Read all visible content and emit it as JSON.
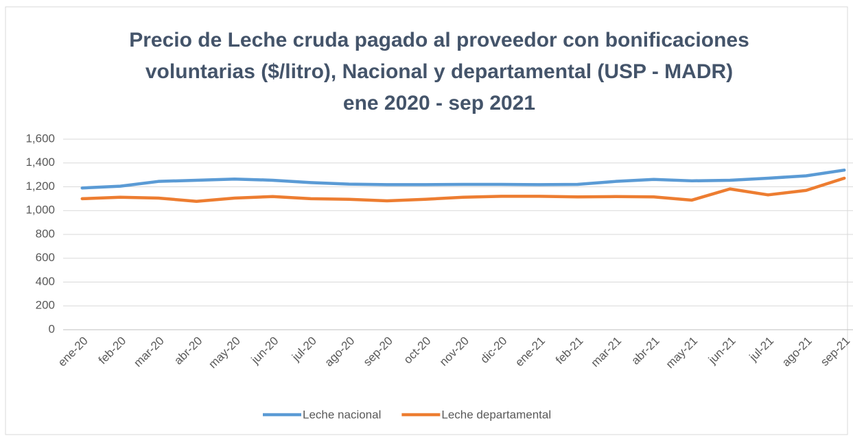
{
  "chart_data": {
    "type": "line",
    "title": [
      "Precio de Leche cruda pagado al proveedor con bonificaciones",
      "voluntarias ($/litro), Nacional y departamental (USP - MADR)",
      "ene 2020 - sep 2021"
    ],
    "categories": [
      "ene-20",
      "feb-20",
      "mar-20",
      "abr-20",
      "may-20",
      "jun-20",
      "jul-20",
      "ago-20",
      "sep-20",
      "oct-20",
      "nov-20",
      "dic-20",
      "ene-21",
      "feb-21",
      "mar-21",
      "abr-21",
      "may-21",
      "jun-21",
      "jul-21",
      "ago-21",
      "sep-21"
    ],
    "series": [
      {
        "name": "Leche nacional",
        "color": "#5b9bd5",
        "values": [
          1190,
          1205,
          1245,
          1255,
          1265,
          1255,
          1235,
          1222,
          1218,
          1218,
          1220,
          1220,
          1218,
          1220,
          1245,
          1262,
          1250,
          1255,
          1272,
          1292,
          1340
        ]
      },
      {
        "name": "Leche departamental",
        "color": "#ed7d31",
        "values": [
          1100,
          1112,
          1105,
          1078,
          1105,
          1118,
          1100,
          1095,
          1082,
          1095,
          1112,
          1120,
          1120,
          1115,
          1118,
          1115,
          1088,
          1182,
          1132,
          1170,
          1272
        ]
      }
    ],
    "ylim": [
      0,
      1600
    ],
    "yticks": [
      0,
      200,
      400,
      600,
      800,
      {
        "value": 1000,
        "label": "1,000"
      },
      {
        "value": 1200,
        "label": "1,200"
      },
      {
        "value": 1400,
        "label": "1,400"
      },
      {
        "value": 1600,
        "label": "1,600"
      }
    ],
    "grid": true,
    "legend": "bottom"
  }
}
